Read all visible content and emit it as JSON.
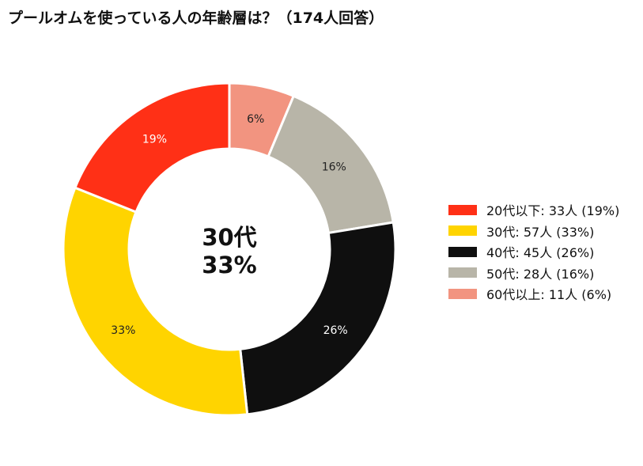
{
  "title": "プールオムを使っている人の年齢層は？（174人回答）",
  "chart_data": {
    "type": "pie",
    "style": "donut",
    "title": "プールオムを使っている人の年齢層は？（174人回答）",
    "legend_position": "right",
    "center_label": {
      "line1": "30代",
      "line2": "33%"
    },
    "slices": [
      {
        "name": "20代以下",
        "count": 33,
        "percent_label": "19%",
        "legend": "20代以下:  33人 (19%)",
        "color": "#ff3016",
        "label_color": "#ffffff"
      },
      {
        "name": "30代",
        "count": 57,
        "percent_label": "33%",
        "legend": "30代:  57人 (33%)",
        "color": "#ffd400",
        "label_color": "#222222"
      },
      {
        "name": "40代",
        "count": 45,
        "percent_label": "26%",
        "legend": "40代:  45人 (26%)",
        "color": "#0f0f0f",
        "label_color": "#ffffff"
      },
      {
        "name": "50代",
        "count": 28,
        "percent_label": "16%",
        "legend": "50代:  28人 (16%)",
        "color": "#b8b5a8",
        "label_color": "#222222"
      },
      {
        "name": "60代以上",
        "count": 11,
        "percent_label": "6%",
        "legend": "60代以上:  11人 (6%)",
        "color": "#f29480",
        "label_color": "#222222"
      }
    ]
  }
}
